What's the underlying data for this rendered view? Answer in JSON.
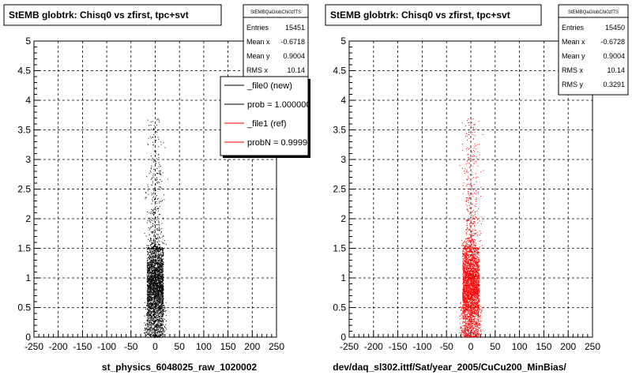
{
  "chart_data": [
    {
      "type": "scatter",
      "title": "StEMB globtrk: Chisq0 vs zfirst, tpc+svt",
      "xlabel": "st_physics_6048025_raw_1020002",
      "ylabel": "",
      "xlim": [
        -250,
        250
      ],
      "ylim": [
        0,
        5
      ],
      "x_ticks": [
        "-250",
        "-200",
        "-150",
        "-100",
        "-50",
        "0",
        "50",
        "100",
        "150",
        "200",
        "250"
      ],
      "y_ticks": [
        "0",
        "0.5",
        "1",
        "1.5",
        "2",
        "2.5",
        "3",
        "3.5",
        "4",
        "4.5",
        "5"
      ],
      "grid": true,
      "marker_color": "#000000",
      "stats": {
        "name": "StEMBQaGlobChi0zfTS",
        "rows": [
          {
            "label": "Entries",
            "value": "15451"
          },
          {
            "label": "Mean x",
            "value": "-0.6718"
          },
          {
            "label": "Mean y",
            "value": "0.9004"
          },
          {
            "label": "RMS x",
            "value": "10.14"
          }
        ]
      },
      "legend": {
        "position": "top-right",
        "entries": [
          {
            "label": "_file0 (new)",
            "color": "#000000"
          },
          {
            "label": "prob = 1.000000",
            "color": "#000000"
          },
          {
            "label": "_file1 (ref)",
            "color": "#ff0000"
          },
          {
            "label": "probN = 0.999999",
            "color": "#ff0000"
          }
        ]
      },
      "distribution": {
        "x_mean": -0.6718,
        "x_rms": 10.14,
        "x_range": [
          -25,
          25
        ],
        "dense_y_range": [
          0,
          1.5
        ],
        "y_mean": 0.9004,
        "y_max": 3.7,
        "entries": 15451
      }
    },
    {
      "type": "scatter",
      "title": "StEMB globtrk: Chisq0 vs zfirst, tpc+svt",
      "xlabel": "dev/daq_sl302.ittf/Sat/year_2005/CuCu200_MinBias/",
      "ylabel": "",
      "xlim": [
        -250,
        250
      ],
      "ylim": [
        0,
        5
      ],
      "x_ticks": [
        "-250",
        "-200",
        "-150",
        "-100",
        "-50",
        "0",
        "50",
        "100",
        "150",
        "200",
        "250"
      ],
      "y_ticks": [
        "0",
        "0.5",
        "1",
        "1.5",
        "2",
        "2.5",
        "3",
        "3.5",
        "4",
        "4.5",
        "5"
      ],
      "grid": true,
      "marker_color": "#ff0000",
      "stats": {
        "name": "StEMBQaGlobChi0zfTS",
        "rows": [
          {
            "label": "Entries",
            "value": "15450"
          },
          {
            "label": "Mean x",
            "value": "-0.6728"
          },
          {
            "label": "Mean y",
            "value": "0.9004"
          },
          {
            "label": "RMS x",
            "value": "10.14"
          },
          {
            "label": "RMS y",
            "value": "0.3291"
          }
        ]
      },
      "distribution": {
        "x_mean": -0.6728,
        "x_rms": 10.14,
        "x_range": [
          -25,
          25
        ],
        "dense_y_range": [
          0,
          1.5
        ],
        "y_mean": 0.9004,
        "y_max": 3.7,
        "entries": 15450
      }
    }
  ]
}
